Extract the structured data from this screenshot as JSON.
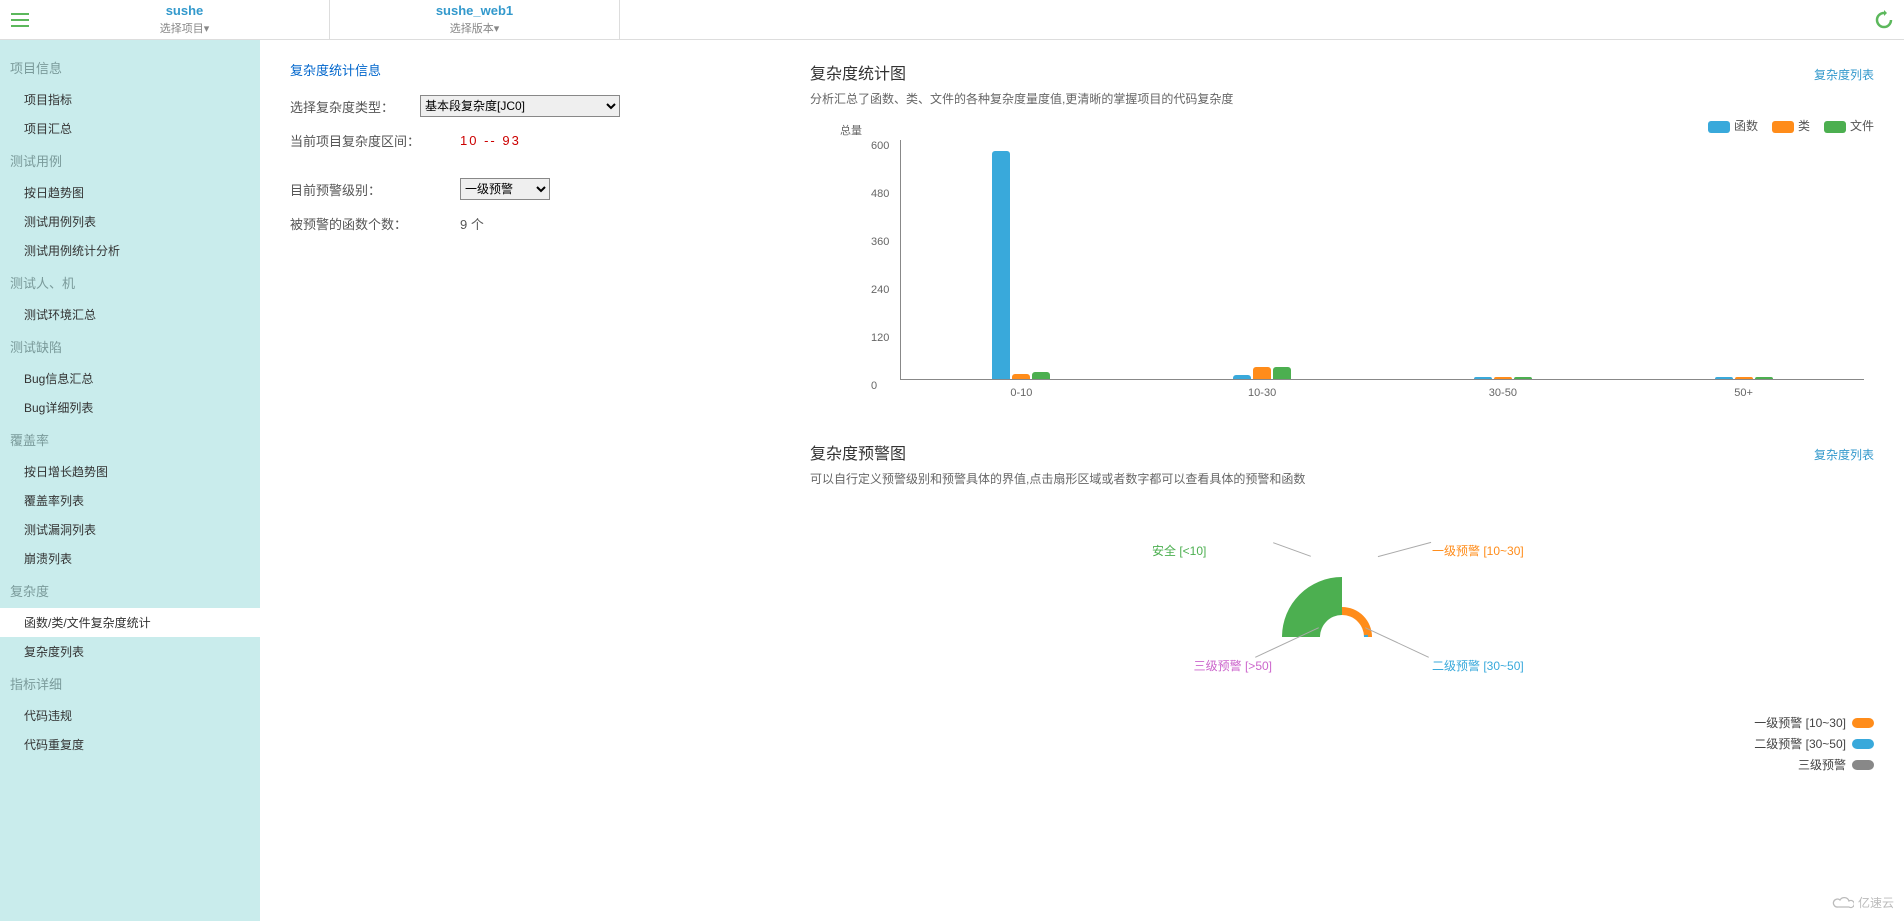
{
  "topbar": {
    "tab1_title": "sushe",
    "tab1_sub": "选择项目▾",
    "tab2_title": "sushe_web1",
    "tab2_sub": "选择版本▾"
  },
  "sidebar": {
    "groups": [
      {
        "title": "项目信息",
        "items": [
          "项目指标",
          "项目汇总"
        ]
      },
      {
        "title": "测试用例",
        "items": [
          "按日趋势图",
          "测试用例列表",
          "测试用例统计分析"
        ]
      },
      {
        "title": "测试人、机",
        "items": [
          "测试环境汇总"
        ]
      },
      {
        "title": "测试缺陷",
        "items": [
          "Bug信息汇总",
          "Bug详细列表"
        ]
      },
      {
        "title": "覆盖率",
        "items": [
          "按日增长趋势图",
          "覆盖率列表",
          "测试漏洞列表",
          "崩溃列表"
        ]
      },
      {
        "title": "复杂度",
        "items": [
          "函数/类/文件复杂度统计",
          "复杂度列表"
        ]
      },
      {
        "title": "指标详细",
        "items": [
          "代码违规",
          "代码重复度"
        ]
      }
    ],
    "active": "函数/类/文件复杂度统计"
  },
  "info_panel": {
    "title": "复杂度统计信息",
    "type_label": "选择复杂度类型：",
    "type_value": "基本段复杂度[JC0]",
    "range_label": "当前项目复杂度区间：",
    "range_value": "10   --   93",
    "warn_label": "目前预警级别：",
    "warn_value": "一级预警",
    "count_label": "被预警的函数个数：",
    "count_value": "9 个"
  },
  "bar_chart": {
    "title": "复杂度统计图",
    "link": "复杂度列表",
    "desc": "分析汇总了函数、类、文件的各种复杂度量度值,更清晰的掌握项目的代码复杂度",
    "y_title": "总量",
    "ylim": [
      0,
      600
    ],
    "yticks": [
      0,
      120,
      240,
      360,
      480,
      600
    ],
    "categories": [
      "0-10",
      "10-30",
      "30-50",
      "50+"
    ],
    "series": [
      {
        "name": "函数",
        "color": "#39a9db",
        "values": [
          570,
          10,
          2,
          2
        ]
      },
      {
        "name": "类",
        "color": "#ff8c1a",
        "values": [
          12,
          30,
          4,
          6
        ]
      },
      {
        "name": "文件",
        "color": "#4caf50",
        "values": [
          18,
          30,
          6,
          2
        ]
      }
    ]
  },
  "gauge_chart": {
    "title": "复杂度预警图",
    "link": "复杂度列表",
    "desc": "可以自行定义预警级别和预警具体的界值,点击扇形区域或者数字都可以查看具体的预警和函数",
    "labels": {
      "safe": {
        "text": "安全 [<10]",
        "color": "#4caf50"
      },
      "level1": {
        "text": "一级预警 [10~30]",
        "color": "#ff8c1a"
      },
      "level2": {
        "text": "二级预警 [30~50]",
        "color": "#39a9db"
      },
      "level3": {
        "text": "三级预警 [>50]",
        "color": "#cc66cc"
      }
    },
    "legend": [
      {
        "text": "一级预警 [10~30]",
        "color": "#ff8c1a"
      },
      {
        "text": "二级预警 [30~50]",
        "color": "#39a9db"
      },
      {
        "text": "三级预警",
        "color": "#888888"
      }
    ],
    "arcs": {
      "safe_color": "#4caf50",
      "l1_color": "#ff8c1a",
      "l2_color": "#39a9db",
      "inner_r": 22,
      "outer_r": 60
    }
  },
  "watermark": "亿速云"
}
